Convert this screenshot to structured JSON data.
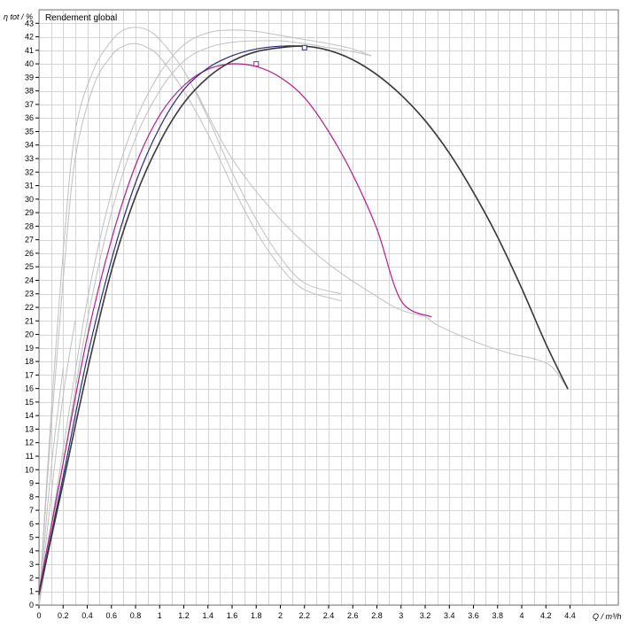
{
  "chart_data": {
    "type": "line",
    "title": "Rendement global",
    "ylabel": "η tot / %",
    "xlabel": "Q / m³/h",
    "xlim": [
      0,
      4.8
    ],
    "ylim": [
      0,
      44
    ],
    "grid": true,
    "x_ticks": [
      "0",
      "0.2",
      "0.4",
      "0.6",
      "0.8",
      "1",
      "1.2",
      "1.4",
      "1.6",
      "1.8",
      "2",
      "2.2",
      "2.4",
      "2.6",
      "2.8",
      "3",
      "3.2",
      "3.4",
      "3.6",
      "3.8",
      "4",
      "4.2",
      "4.4"
    ],
    "y_ticks": [
      "0",
      "1",
      "2",
      "3",
      "4",
      "5",
      "6",
      "7",
      "8",
      "9",
      "10",
      "11",
      "12",
      "13",
      "14",
      "15",
      "16",
      "17",
      "18",
      "19",
      "20",
      "21",
      "22",
      "23",
      "24",
      "25",
      "26",
      "27",
      "28",
      "29",
      "30",
      "31",
      "32",
      "33",
      "34",
      "35",
      "36",
      "37",
      "38",
      "39",
      "40",
      "41",
      "42",
      "43"
    ],
    "colors": {
      "gray": "#c0c0c0",
      "dark": "#3a3a3a",
      "navy": "#2a2a7a",
      "magenta": "#b0208a",
      "grid": "#d4d4d4",
      "frame": "#808080"
    },
    "series": [
      {
        "color": "gray",
        "width": 1,
        "x": [
          0,
          0.1,
          0.2,
          0.3,
          0.45,
          0.6,
          0.7,
          0.8,
          0.9,
          1.0,
          1.2,
          1.4,
          1.6,
          1.8,
          2.0,
          2.2,
          2.5
        ],
        "y": [
          0,
          14,
          26,
          35,
          39.5,
          41.7,
          42.5,
          42.7,
          42.5,
          41.8,
          39.5,
          36,
          32,
          28.5,
          25.7,
          23.8,
          23
        ]
      },
      {
        "color": "gray",
        "width": 1,
        "x": [
          0,
          0.1,
          0.2,
          0.3,
          0.45,
          0.6,
          0.7,
          0.8,
          0.9,
          1.0,
          1.2,
          1.4,
          1.6,
          1.8,
          2.0,
          2.2,
          2.5
        ],
        "y": [
          0,
          13,
          24,
          33,
          38.3,
          40.6,
          41.3,
          41.5,
          41.2,
          40.5,
          38,
          34.8,
          31,
          27.6,
          25,
          23.3,
          22.5
        ]
      },
      {
        "color": "gray",
        "width": 1,
        "x": [
          0,
          0.2,
          0.4,
          0.6,
          0.8,
          1.0,
          1.2,
          1.4,
          1.6,
          1.8,
          2.0,
          2.2,
          2.4,
          2.6,
          2.75
        ],
        "y": [
          0,
          11.5,
          22.5,
          30.5,
          35.8,
          39.3,
          41.4,
          42.3,
          42.5,
          42.4,
          42.1,
          41.8,
          41.5,
          41.1,
          40.6
        ]
      },
      {
        "color": "gray",
        "width": 1,
        "x": [
          0,
          0.2,
          0.4,
          0.6,
          0.8,
          1.0,
          1.2,
          1.4,
          1.6,
          1.8,
          2.0,
          2.2,
          2.4,
          2.6,
          2.75
        ],
        "y": [
          0,
          10.5,
          21,
          29,
          34.5,
          38,
          40.2,
          41.2,
          41.6,
          41.7,
          41.7,
          41.5,
          41.2,
          40.9,
          40.6
        ]
      },
      {
        "color": "gray",
        "width": 1,
        "x": [
          1.3,
          1.6,
          2.0,
          2.4,
          2.8,
          3.0,
          3.2,
          3.3,
          3.6,
          3.9,
          4.1,
          4.25,
          4.38
        ],
        "y": [
          38,
          33,
          28.5,
          25.2,
          22.8,
          21.8,
          21.3,
          20.7,
          19.5,
          18.6,
          18.2,
          17.6,
          16
        ]
      },
      {
        "color": "gray",
        "width": 1,
        "x": [
          0,
          0.1,
          0.2
        ],
        "y": [
          0,
          10,
          17.5
        ]
      },
      {
        "color": "gray",
        "width": 1,
        "x": [
          0,
          0.1,
          0.2,
          0.3
        ],
        "y": [
          0,
          8,
          15.5,
          21
        ]
      },
      {
        "color": "magenta",
        "width": 1.2,
        "x": [
          0,
          0.2,
          0.4,
          0.6,
          0.8,
          1.0,
          1.2,
          1.4,
          1.6,
          1.8,
          2.0,
          2.2,
          2.4,
          2.6,
          2.8,
          3.0,
          3.25
        ],
        "y": [
          1,
          10.5,
          19.8,
          27,
          32.5,
          36.2,
          38.4,
          39.6,
          40,
          39.8,
          39,
          37.5,
          35,
          31.8,
          27.8,
          22.5,
          21.3
        ]
      },
      {
        "color": "navy",
        "width": 1.2,
        "x": [
          0,
          0.2,
          0.4,
          0.6,
          0.8,
          1.0,
          1.2,
          1.4,
          1.6,
          1.8,
          2.0,
          2.2,
          2.4,
          2.6,
          2.8,
          3.0,
          3.2,
          3.4,
          3.6,
          3.8,
          4.0,
          4.2,
          4.38
        ],
        "y": [
          0.8,
          9.5,
          18.3,
          25.5,
          31.2,
          35.3,
          38.1,
          39.7,
          40.6,
          41.1,
          41.3,
          41.3,
          41,
          40.3,
          39.2,
          37.7,
          35.8,
          33.4,
          30.5,
          27.2,
          23.4,
          19.3,
          16
        ]
      },
      {
        "color": "dark",
        "width": 1.6,
        "x": [
          0,
          0.2,
          0.4,
          0.6,
          0.8,
          1.0,
          1.2,
          1.4,
          1.6,
          1.8,
          2.0,
          2.2,
          2.4,
          2.6,
          2.8,
          3.0,
          3.2,
          3.4,
          3.6,
          3.8,
          4.0,
          4.2,
          4.38
        ],
        "y": [
          0.8,
          9,
          17.3,
          24.7,
          30.2,
          34.2,
          37.1,
          39,
          40.2,
          40.9,
          41.2,
          41.3,
          41,
          40.3,
          39.2,
          37.7,
          35.8,
          33.4,
          30.5,
          27.2,
          23.4,
          19.3,
          16
        ]
      }
    ],
    "markers": [
      {
        "x": 1.8,
        "y": 40,
        "color": "magenta"
      },
      {
        "x": 2.2,
        "y": 41.2,
        "color": "navy"
      }
    ]
  }
}
